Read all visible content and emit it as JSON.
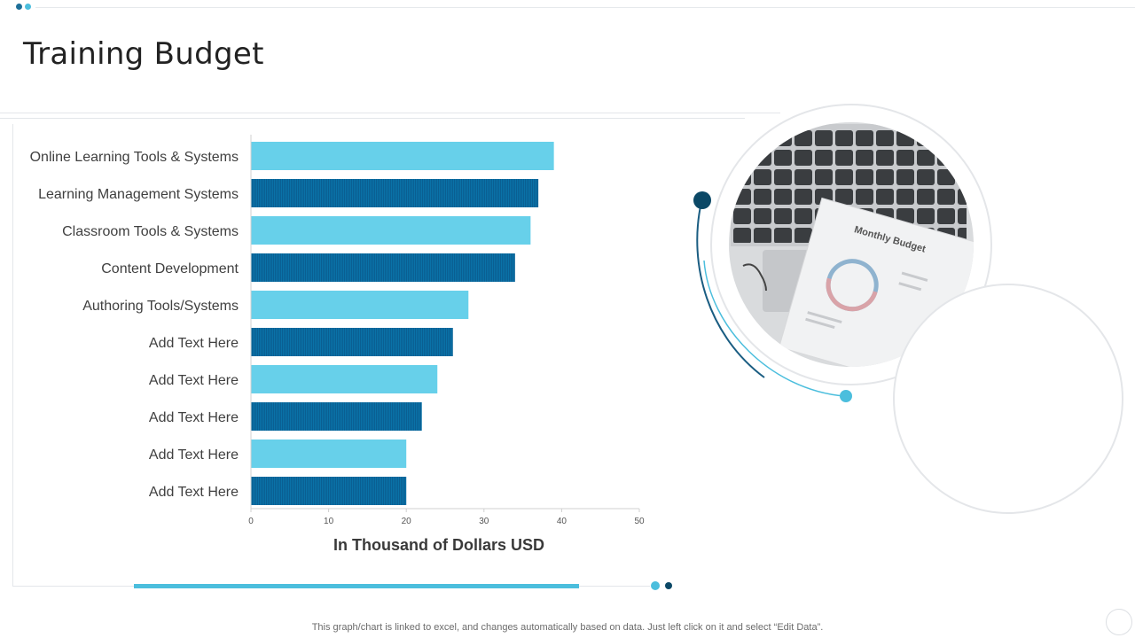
{
  "page": {
    "title": "Training Budget",
    "footer_note": "This graph/chart is linked to excel,  and changes automatically based on data. Just left click on it and select “Edit Data”."
  },
  "image": {
    "heading": "Monthly Budget"
  },
  "colors": {
    "light_bar": "#67d0ea",
    "dark_bar": "#0a72a8",
    "dark_accent": "#0b4866",
    "accent": "#4bbedd"
  },
  "chart_data": {
    "type": "bar",
    "orientation": "horizontal",
    "categories": [
      "Online Learning Tools & Systems",
      "Learning Management Systems",
      "Classroom Tools & Systems",
      "Content Development",
      "Authoring Tools/Systems",
      "Add Text Here",
      "Add Text Here",
      "Add Text Here",
      "Add Text Here",
      "Add Text Here"
    ],
    "values": [
      39,
      37,
      36,
      34,
      28,
      26,
      24,
      22,
      20,
      20
    ],
    "xlabel": "In  Thousand of Dollars USD",
    "ylabel": "",
    "xlim": [
      0,
      50
    ],
    "ticks": [
      0,
      10,
      20,
      30,
      40,
      50
    ],
    "tick_labels": [
      "0",
      "10",
      "20",
      "30",
      "40",
      "50"
    ],
    "grid": false,
    "legend": "none"
  }
}
